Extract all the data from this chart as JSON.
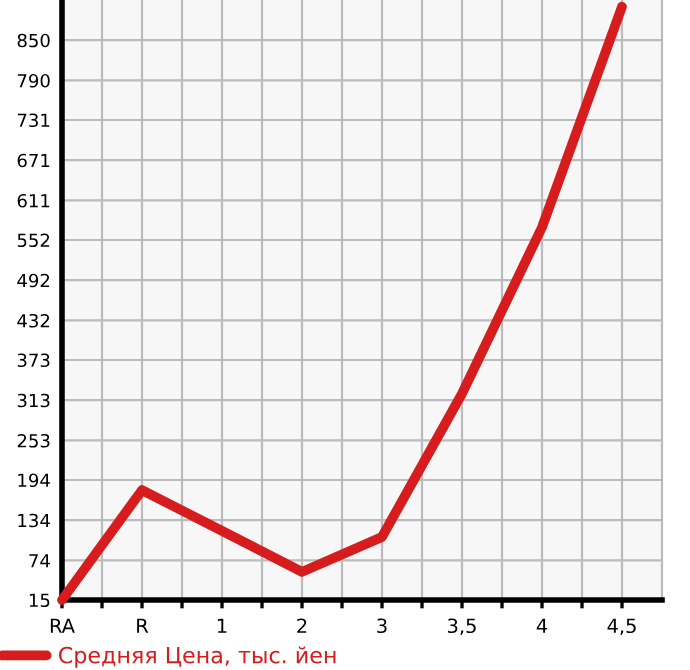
{
  "chart_data": {
    "type": "line",
    "categories": [
      "RA",
      "R",
      "1",
      "2",
      "3",
      "3,5",
      "4",
      "4,5"
    ],
    "series": [
      {
        "name": "Средняя Цена, тыс. йен",
        "color": "#d61c1c",
        "values": [
          15,
          179,
          118,
          57,
          109,
          323,
          571,
          900
        ]
      }
    ],
    "ylim": [
      15,
      910
    ],
    "yticks": [
      15,
      74,
      134,
      194,
      253,
      313,
      373,
      432,
      492,
      552,
      611,
      671,
      731,
      790,
      850
    ],
    "grid": true,
    "legend": "bottom",
    "marker": "none",
    "line_style": "solid"
  }
}
